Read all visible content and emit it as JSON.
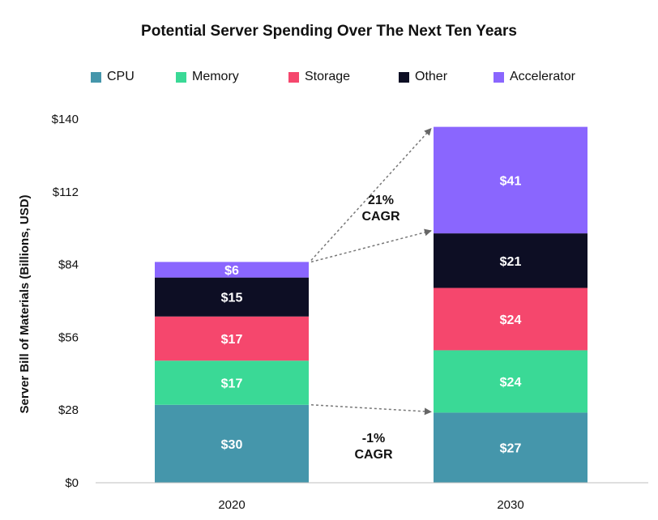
{
  "chart_data": {
    "type": "bar",
    "stacked": true,
    "title": "Potential Server Spending Over The Next Ten Years",
    "ylabel": "Server Bill of Materials (Billions, USD)",
    "xlabel": "",
    "categories": [
      "2020",
      "2030"
    ],
    "ylim": [
      0,
      140
    ],
    "yticks": [
      0,
      28,
      56,
      84,
      112,
      140
    ],
    "ytick_labels": [
      "$0",
      "$28",
      "$56",
      "$84",
      "$112",
      "$140"
    ],
    "legend_position": "top",
    "grid": false,
    "series": [
      {
        "name": "CPU",
        "color": "#4596ab",
        "values": [
          30,
          27
        ],
        "labels": [
          "$30",
          "$27"
        ]
      },
      {
        "name": "Memory",
        "color": "#3ad996",
        "values": [
          17,
          24
        ],
        "labels": [
          "$17",
          "$24"
        ]
      },
      {
        "name": "Storage",
        "color": "#f5476d",
        "values": [
          17,
          24
        ],
        "labels": [
          "$17",
          "$24"
        ]
      },
      {
        "name": "Other",
        "color": "#0d0e24",
        "values": [
          15,
          21
        ],
        "labels": [
          "$15",
          "$21"
        ]
      },
      {
        "name": "Accelerator",
        "color": "#8a66fe",
        "values": [
          6,
          41
        ],
        "labels": [
          "$6",
          "$41"
        ]
      }
    ],
    "annotations": [
      {
        "lines": [
          "21%",
          "CAGR"
        ],
        "from_value": 85,
        "to_value": 97
      },
      {
        "lines": [
          "-1%",
          "CAGR"
        ],
        "from_value": 30,
        "to_value": 27
      }
    ]
  }
}
